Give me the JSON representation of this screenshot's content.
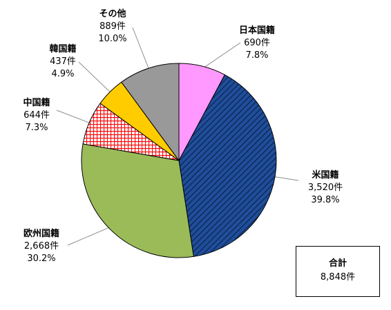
{
  "chart_data": {
    "type": "pie",
    "unit": "件",
    "slices": [
      {
        "name": "日本国籍",
        "value": 690,
        "value_label": "690件",
        "percent_label": "7.8%",
        "color": "#ff99ff",
        "pattern": "solid"
      },
      {
        "name": "米国籍",
        "value": 3520,
        "value_label": "3,520件",
        "percent_label": "39.8%",
        "color": "#1f4e9a",
        "pattern": "diagonal-hatch"
      },
      {
        "name": "欧州国籍",
        "value": 2668,
        "value_label": "2,668件",
        "percent_label": "30.2%",
        "color": "#9bbb59",
        "pattern": "solid"
      },
      {
        "name": "中国籍",
        "value": 644,
        "value_label": "644件",
        "percent_label": "7.3%",
        "color": "#ff0000",
        "pattern": "grid"
      },
      {
        "name": "韓国籍",
        "value": 437,
        "value_label": "437件",
        "percent_label": "4.9%",
        "color": "#ffcc00",
        "pattern": "solid"
      },
      {
        "name": "その他",
        "value": 889,
        "value_label": "889件",
        "percent_label": "10.0%",
        "color": "#999999",
        "pattern": "solid"
      }
    ],
    "start": "12 o'clock",
    "direction": "clockwise"
  },
  "total": {
    "title": "合計",
    "value_label": "8,848件"
  }
}
